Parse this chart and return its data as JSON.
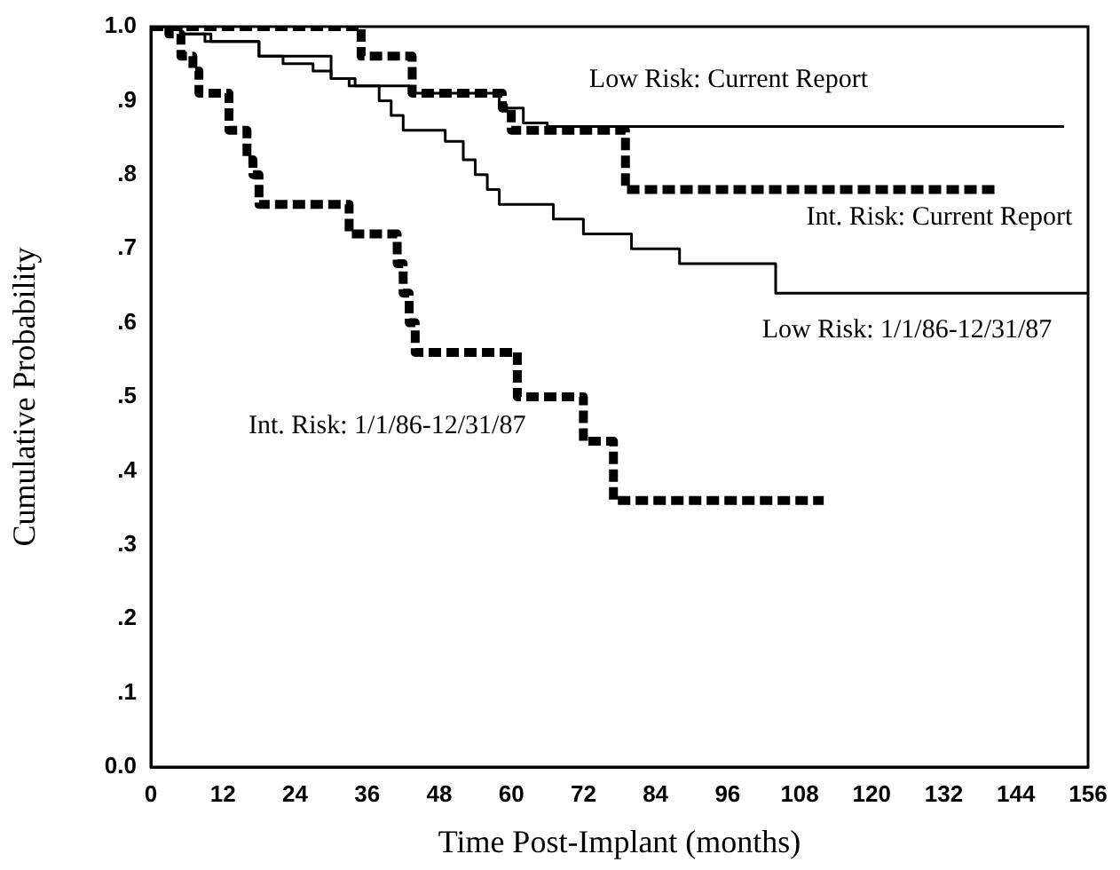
{
  "chart_data": {
    "type": "step",
    "xlabel": "Time Post-Implant (months)",
    "ylabel": "Cumulative Probability",
    "xlim": [
      0,
      156
    ],
    "xticks": [
      0,
      12,
      24,
      36,
      48,
      60,
      72,
      84,
      96,
      108,
      120,
      132,
      144,
      156
    ],
    "ylim": [
      0,
      1
    ],
    "yticks": [
      {
        "value": 0,
        "label": "0.0"
      },
      {
        "value": 0.1,
        "label": ".1"
      },
      {
        "value": 0.2,
        "label": ".2"
      },
      {
        "value": 0.3,
        "label": ".3"
      },
      {
        "value": 0.4,
        "label": ".4"
      },
      {
        "value": 0.5,
        "label": ".5"
      },
      {
        "value": 0.6,
        "label": ".6"
      },
      {
        "value": 0.7,
        "label": ".7"
      },
      {
        "value": 0.8,
        "label": ".8"
      },
      {
        "value": 0.9,
        "label": ".9"
      },
      {
        "value": 1,
        "label": "1.0"
      }
    ],
    "grid": false,
    "legend": false,
    "series": [
      {
        "name": "Low Risk: Current Report",
        "color": "#000000",
        "line_style": "solid",
        "x": [
          0,
          5,
          10,
          18,
          30,
          33,
          43,
          58,
          62,
          66,
          152
        ],
        "values": [
          1,
          0.99,
          0.98,
          0.96,
          0.93,
          0.92,
          0.91,
          0.89,
          0.87,
          0.865,
          0.865
        ]
      },
      {
        "name": "Int. Risk: Current Report",
        "color": "#000000",
        "line_style": "dashed",
        "x": [
          0,
          35,
          43.5,
          58.5,
          60,
          79,
          141
        ],
        "values": [
          1,
          0.96,
          0.91,
          0.89,
          0.86,
          0.78,
          0.78
        ]
      },
      {
        "name": "Low Risk: 1/1/86-12/31/87",
        "color": "#000000",
        "line_style": "solid",
        "x": [
          0,
          5,
          9,
          18,
          22,
          27,
          30,
          34,
          38,
          40,
          42,
          49,
          52,
          54,
          56,
          58,
          67,
          72,
          80,
          88,
          104,
          156
        ],
        "values": [
          1,
          0.99,
          0.98,
          0.96,
          0.95,
          0.94,
          0.93,
          0.92,
          0.9,
          0.88,
          0.86,
          0.845,
          0.82,
          0.8,
          0.78,
          0.76,
          0.74,
          0.72,
          0.7,
          0.68,
          0.64,
          0.64
        ]
      },
      {
        "name": "Int. Risk: 1/1/86-12/31/87",
        "color": "#000000",
        "line_style": "dashed",
        "x": [
          0,
          3,
          5,
          7,
          8,
          13,
          16,
          17,
          18,
          33,
          41,
          42,
          43,
          44,
          61,
          72,
          77,
          112
        ],
        "values": [
          1,
          0.99,
          0.96,
          0.94,
          0.91,
          0.86,
          0.82,
          0.8,
          0.76,
          0.72,
          0.68,
          0.64,
          0.6,
          0.56,
          0.5,
          0.44,
          0.36,
          0.36
        ]
      }
    ]
  }
}
